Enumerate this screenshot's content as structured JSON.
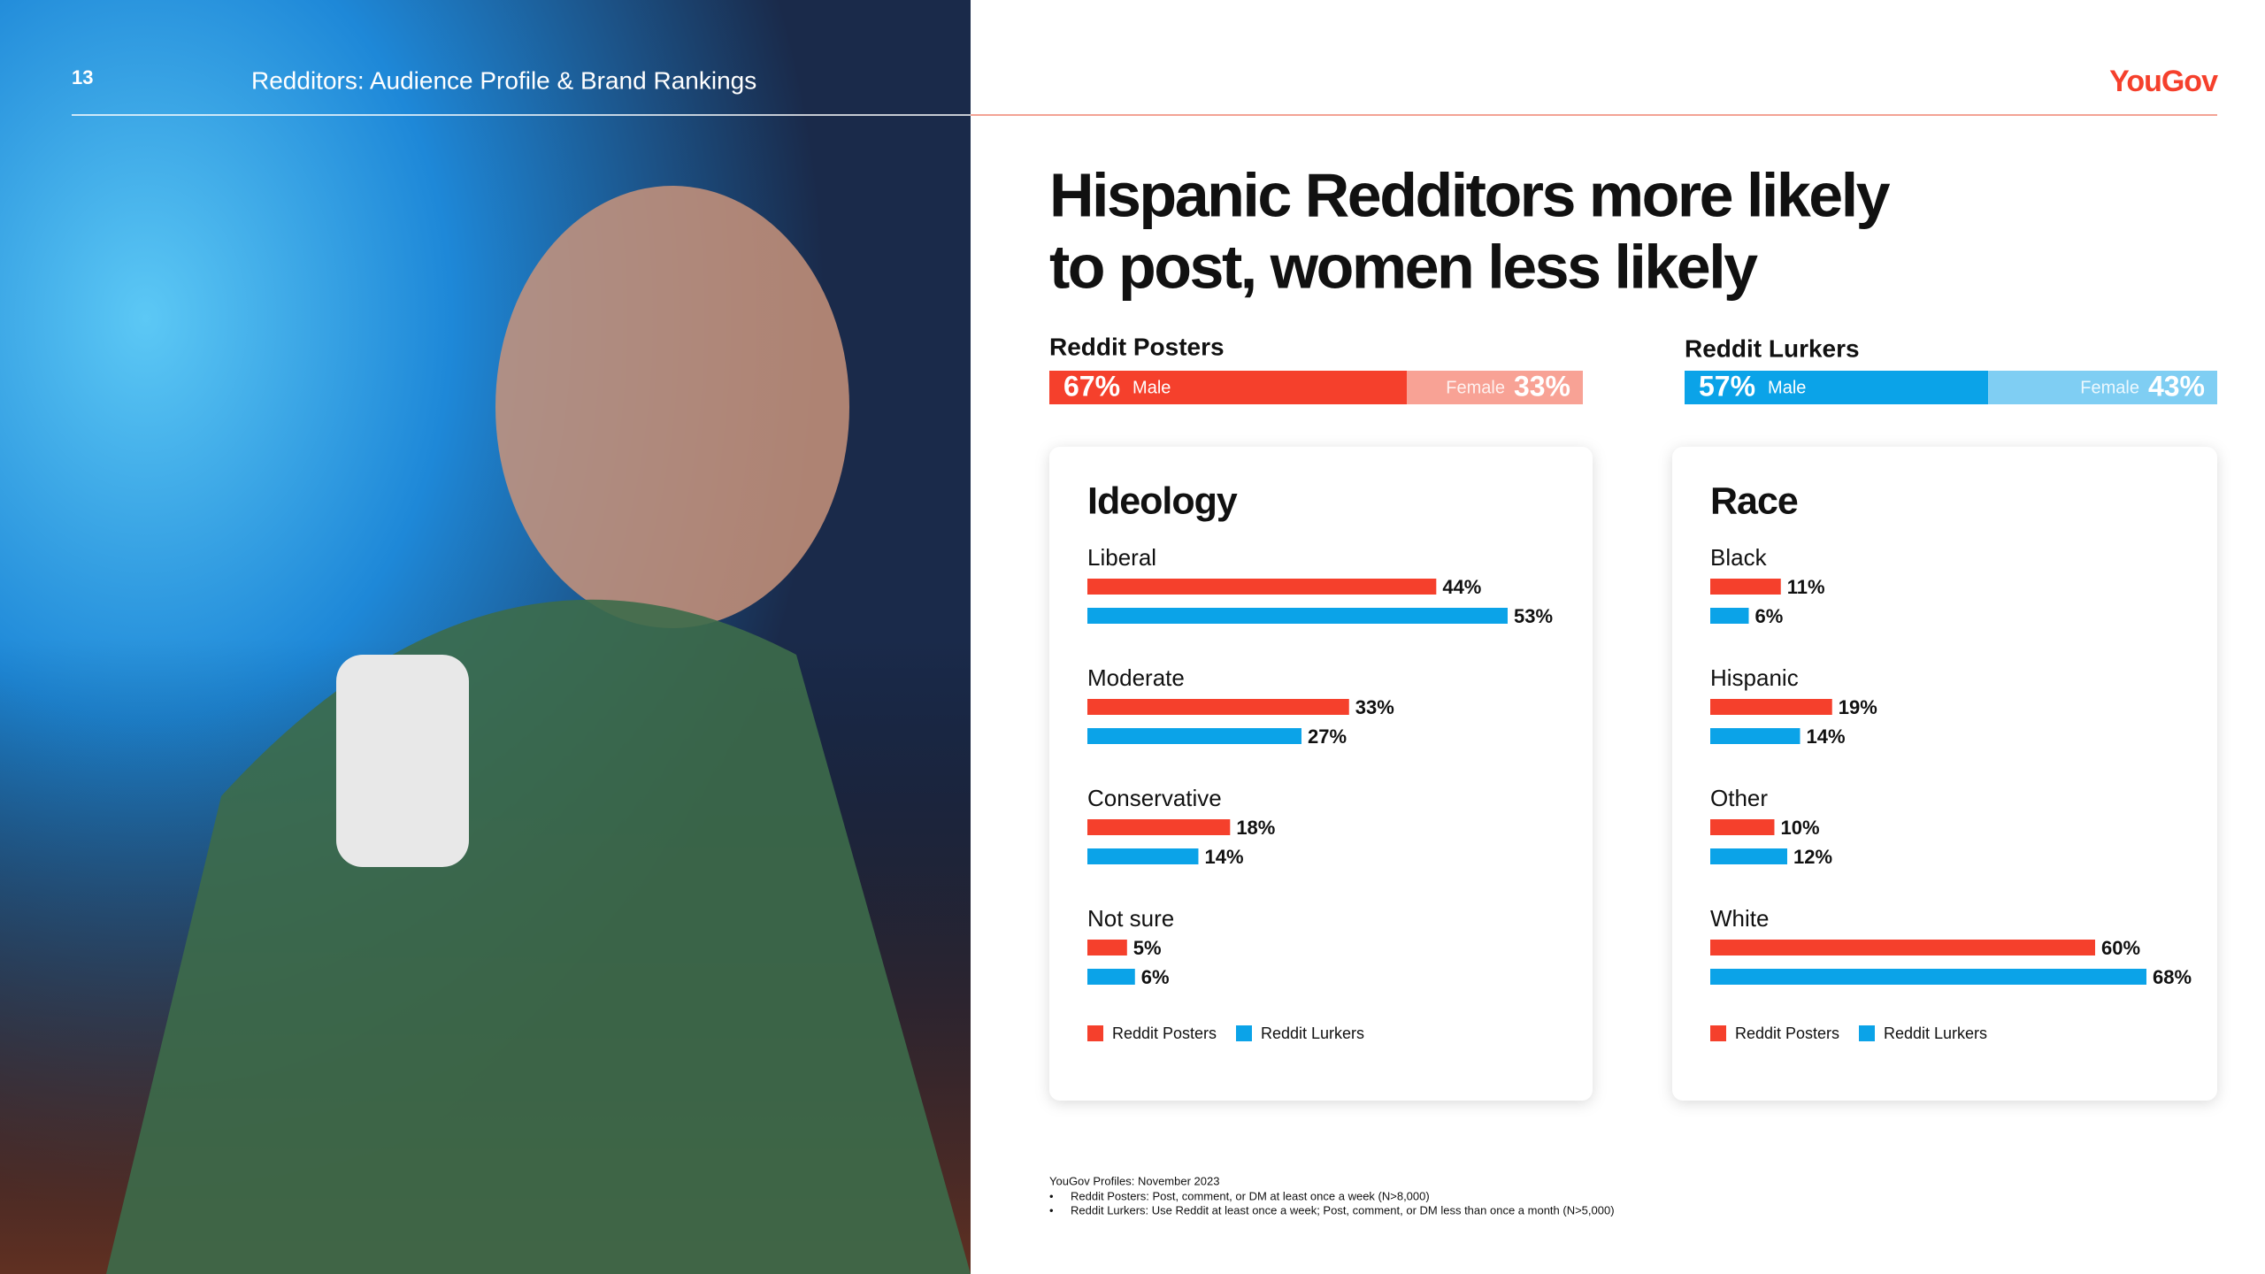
{
  "header": {
    "page_number": "13",
    "title": "Redditors: Audience Profile & Brand Rankings",
    "logo": "YouGov"
  },
  "headline": {
    "lines": [
      "Hispanic Redditors more likely",
      "to post, women less likely"
    ]
  },
  "chart_data": [
    {
      "type": "split-bar",
      "title": "Reddit Posters",
      "categories": [
        "Male",
        "Female"
      ],
      "values": [
        67,
        33
      ],
      "value_labels": [
        "67%",
        "33%"
      ],
      "colors": [
        "#f5402c",
        "#f8a295"
      ]
    },
    {
      "type": "split-bar",
      "title": "Reddit Lurkers",
      "categories": [
        "Male",
        "Female"
      ],
      "values": [
        57,
        43
      ],
      "value_labels": [
        "57%",
        "43%"
      ],
      "colors": [
        "#0ba3e8",
        "#7fcef3"
      ]
    },
    {
      "type": "bar",
      "orientation": "horizontal",
      "title": "Ideology",
      "categories": [
        "Liberal",
        "Moderate",
        "Conservative",
        "Not sure"
      ],
      "series": [
        {
          "name": "Reddit Posters",
          "color": "#f5402c",
          "values": [
            44,
            33,
            18,
            5
          ],
          "value_labels": [
            "44%",
            "33%",
            "18%",
            "5%"
          ]
        },
        {
          "name": "Reddit Lurkers",
          "color": "#0ba3e8",
          "values": [
            53,
            27,
            14,
            6
          ],
          "value_labels": [
            "53%",
            "27%",
            "14%",
            "6%"
          ]
        }
      ],
      "legend": "bottom-left"
    },
    {
      "type": "bar",
      "orientation": "horizontal",
      "title": "Race",
      "categories": [
        "Black",
        "Hispanic",
        "Other",
        "White"
      ],
      "series": [
        {
          "name": "Reddit Posters",
          "color": "#f5402c",
          "values": [
            11,
            19,
            10,
            60
          ],
          "value_labels": [
            "11%",
            "19%",
            "10%",
            "60%"
          ]
        },
        {
          "name": "Reddit Lurkers",
          "color": "#0ba3e8",
          "values": [
            6,
            14,
            12,
            68
          ],
          "value_labels": [
            "6%",
            "14%",
            "12%",
            "68%"
          ]
        }
      ],
      "legend": "bottom-left"
    }
  ],
  "footnote": {
    "source": "YouGov Profiles: November 2023",
    "notes": [
      "Reddit Posters: Post, comment, or DM at least once a week (N>8,000)",
      "Reddit Lurkers: Use Reddit at least once a week; Post, comment, or DM less than once a month (N>5,000)"
    ]
  }
}
